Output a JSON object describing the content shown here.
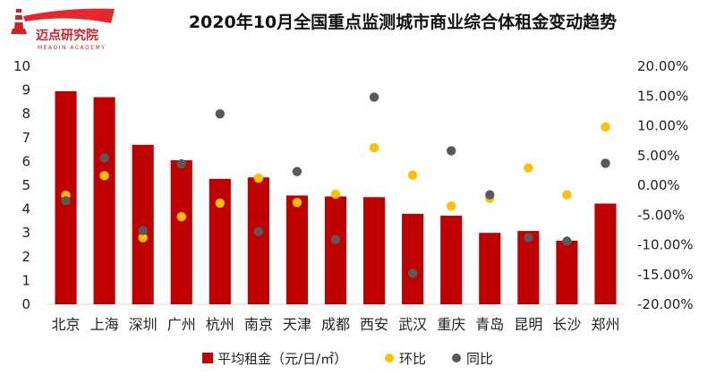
{
  "logo": {
    "name": "迈点研究院",
    "subtitle": "MEADIN ACADEMY"
  },
  "chart_data": {
    "type": "bar",
    "title": "2020年10月全国重点监测城市商业综合体租金变动趋势",
    "categories": [
      "北京",
      "上海",
      "深圳",
      "广州",
      "杭州",
      "南京",
      "天津",
      "成都",
      "西安",
      "武汉",
      "重庆",
      "青岛",
      "昆明",
      "长沙",
      "郑州"
    ],
    "series": [
      {
        "name": "平均租金（元/日/㎡）",
        "type": "bar",
        "axis": "left",
        "color": "#c00000",
        "values": [
          8.95,
          8.7,
          6.7,
          6.05,
          5.27,
          5.33,
          4.57,
          4.53,
          4.5,
          3.8,
          3.72,
          3.0,
          3.08,
          2.67,
          4.23
        ]
      },
      {
        "name": "环比",
        "type": "scatter",
        "axis": "right",
        "unit": "%",
        "color": "#ffc000",
        "values": [
          -1.7,
          1.6,
          -8.8,
          -5.3,
          -3.0,
          1.2,
          -2.9,
          -1.5,
          6.3,
          1.7,
          -3.5,
          -2.2,
          2.9,
          -1.6,
          9.8
        ]
      },
      {
        "name": "同比",
        "type": "scatter",
        "axis": "right",
        "unit": "%",
        "color": "#595959",
        "values": [
          -2.6,
          4.6,
          -7.6,
          3.6,
          12.0,
          -7.8,
          2.3,
          -9.1,
          14.8,
          -14.8,
          5.8,
          -1.6,
          -8.8,
          -9.4,
          3.7
        ]
      }
    ],
    "ylim": [
      0,
      10
    ],
    "yticks": [
      "0",
      "1",
      "2",
      "3",
      "4",
      "5",
      "6",
      "7",
      "8",
      "9",
      "10"
    ],
    "y2lim": [
      -20,
      20
    ],
    "y2ticks": [
      "-20.00%",
      "-15.00%",
      "-10.00%",
      "-5.00%",
      "0.00%",
      "5.00%",
      "10.00%",
      "15.00%",
      "20.00%"
    ],
    "legend_position": "bottom",
    "grid": false
  }
}
